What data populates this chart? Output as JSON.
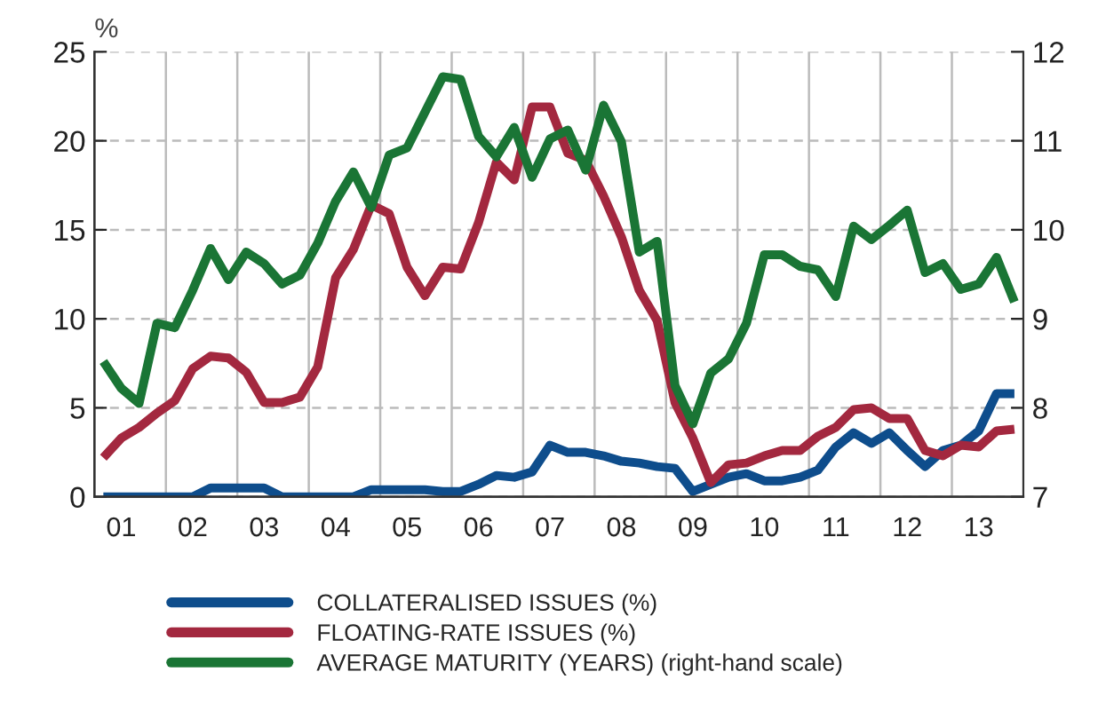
{
  "chart_data": {
    "type": "line",
    "ylabel": "%",
    "categories": [
      null,
      "01",
      null,
      null,
      null,
      "02",
      null,
      null,
      null,
      "03",
      null,
      null,
      null,
      "04",
      null,
      null,
      null,
      "05",
      null,
      null,
      null,
      "06",
      null,
      null,
      null,
      "07",
      null,
      null,
      null,
      "08",
      null,
      null,
      null,
      "09",
      null,
      null,
      null,
      "10",
      null,
      null,
      null,
      "11",
      null,
      null,
      null,
      "12",
      null,
      null,
      null,
      "13",
      null,
      null
    ],
    "series": [
      {
        "name": "COLLATERALISED ISSUES (%)",
        "color": "#0e4d8c",
        "values": [
          0,
          0,
          0,
          0,
          0,
          0,
          0.5,
          0.5,
          0.5,
          0.5,
          0,
          0,
          0,
          0,
          0,
          0.4,
          0.4,
          0.4,
          0.4,
          0.3,
          0.3,
          0.7,
          1.2,
          1.1,
          1.4,
          2.9,
          2.5,
          2.5,
          2.3,
          2.0,
          1.9,
          1.7,
          1.6,
          0.3,
          0.7,
          1.1,
          1.3,
          0.9,
          0.9,
          1.1,
          1.5,
          2.8,
          3.6,
          3.0,
          3.6,
          2.6,
          1.7,
          2.6,
          2.9,
          3.7,
          5.8,
          5.8
        ]
      },
      {
        "name": "FLOATING-RATE ISSUES (%)",
        "color": "#a3283f",
        "values": [
          2.2,
          3.3,
          3.9,
          4.7,
          5.4,
          7.2,
          7.9,
          7.8,
          7.0,
          5.3,
          5.3,
          5.6,
          7.3,
          12.3,
          13.9,
          16.4,
          15.9,
          12.9,
          11.3,
          12.9,
          12.8,
          15.4,
          18.8,
          17.8,
          21.9,
          21.9,
          19.3,
          18.9,
          16.9,
          14.6,
          11.6,
          9.9,
          5.3,
          3.3,
          0.8,
          1.8,
          1.9,
          2.3,
          2.6,
          2.6,
          3.4,
          3.9,
          4.9,
          5.0,
          4.4,
          4.4,
          2.6,
          2.3,
          2.9,
          2.8,
          3.7,
          3.8
        ]
      },
      {
        "name": "AVERAGE MATURITY (YEARS) (right-hand scale)",
        "color": "#1a7535",
        "axis": "y2",
        "values": [
          8.52,
          8.22,
          8.05,
          8.95,
          8.9,
          9.32,
          9.79,
          9.44,
          9.75,
          9.62,
          9.39,
          9.49,
          9.85,
          10.32,
          10.65,
          10.25,
          10.84,
          10.92,
          11.32,
          11.72,
          11.69,
          11.05,
          10.82,
          11.15,
          10.59,
          11.02,
          11.12,
          10.67,
          11.4,
          10.99,
          9.75,
          9.87,
          8.25,
          7.82,
          8.39,
          8.55,
          8.95,
          9.72,
          9.72,
          9.59,
          9.55,
          9.25,
          10.04,
          9.89,
          10.05,
          10.22,
          9.52,
          9.62,
          9.33,
          9.39,
          9.69,
          9.19
        ]
      }
    ],
    "ylim": [
      0,
      25
    ],
    "yticks": [
      0,
      5,
      10,
      15,
      20,
      25
    ],
    "y2lim": [
      7,
      12
    ],
    "y2ticks": [
      7,
      8,
      9,
      10,
      11,
      12
    ],
    "grid": true,
    "legend": "bottom",
    "line_style": "solid",
    "marker": "none"
  }
}
